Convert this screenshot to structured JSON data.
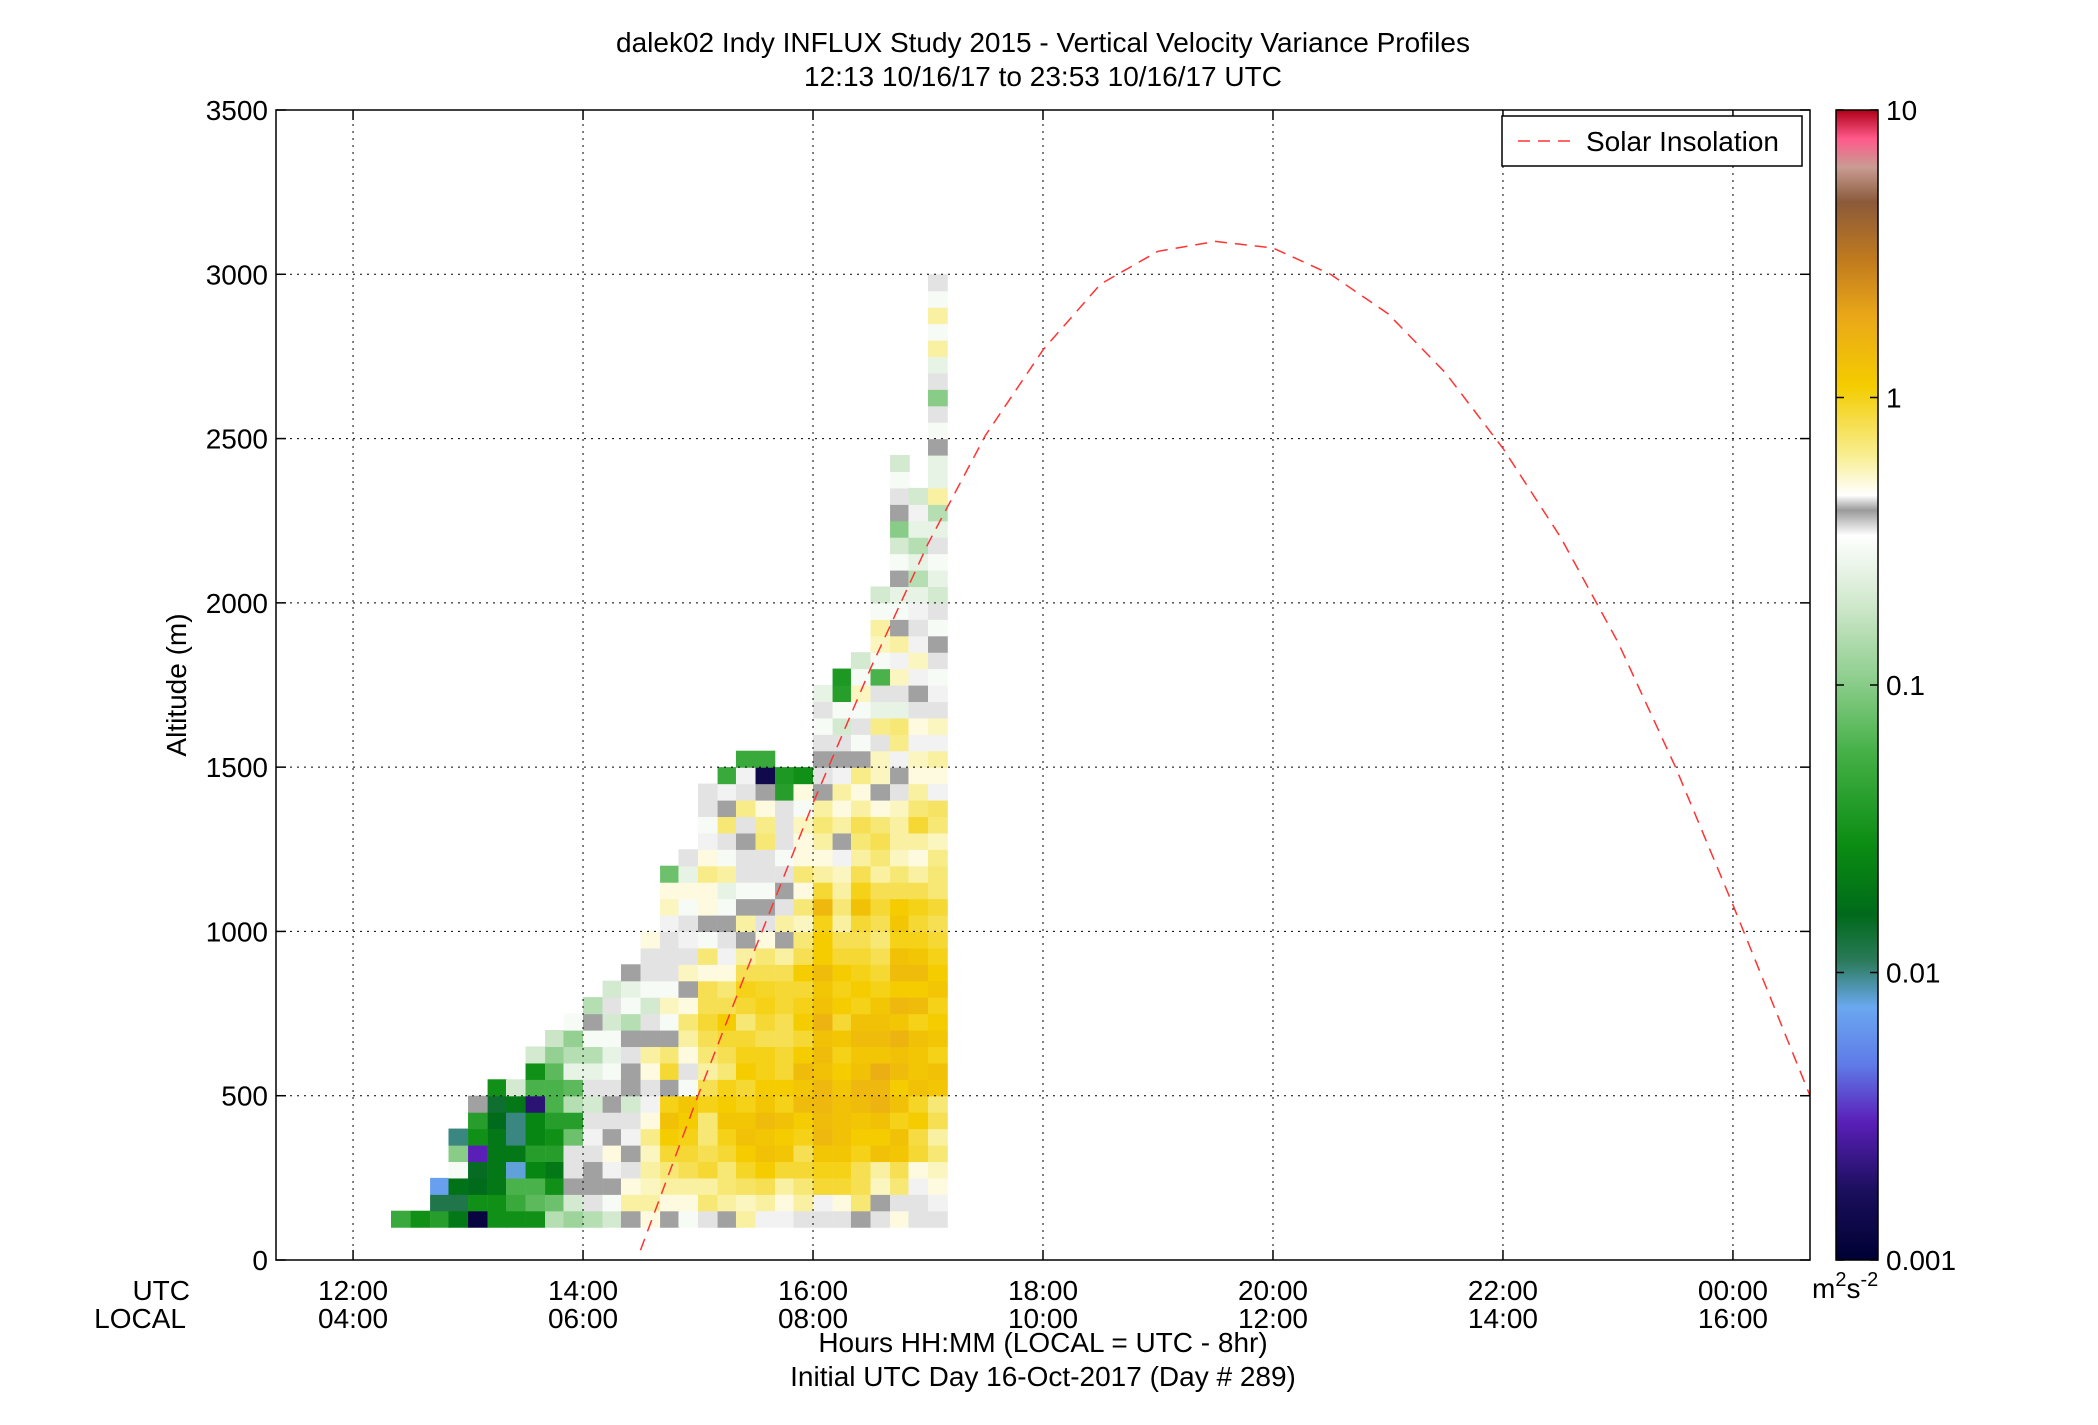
{
  "chart_data": {
    "type": "heatmap",
    "title": "dalek02 Indy INFLUX Study 2015 - Vertical Velocity Variance Profiles",
    "subtitle": "12:13 10/16/17 to 23:53 10/16/17  UTC",
    "ylabel": "Altitude (m)",
    "xlabel": "Hours HH:MM  (LOCAL = UTC - 8hr)",
    "xlabel2": "Initial UTC Day 16-Oct-2017 (Day # 289)",
    "row_label_utc": "UTC",
    "row_label_local": "LOCAL",
    "x_ticks_utc": [
      "12:00",
      "14:00",
      "16:00",
      "18:00",
      "20:00",
      "22:00",
      "00:00"
    ],
    "x_ticks_local": [
      "04:00",
      "06:00",
      "08:00",
      "10:00",
      "12:00",
      "14:00",
      "16:00"
    ],
    "x_tick_hours": [
      12,
      14,
      16,
      18,
      20,
      22,
      24
    ],
    "xlim": [
      11.33,
      24.67
    ],
    "ylim": [
      0,
      3500
    ],
    "y_ticks": [
      0,
      500,
      1000,
      1500,
      2000,
      2500,
      3000,
      3500
    ],
    "grid": true,
    "legend_position": "top-right",
    "legend": [
      {
        "name": "Solar Insolation",
        "style": "red dashed",
        "color": "#ff3333"
      }
    ],
    "colorbar": {
      "scale": "log",
      "min": 0.001,
      "max": 10,
      "ticks": [
        "10",
        "1",
        "0.1",
        "0.01",
        "0.001"
      ],
      "tick_values": [
        10,
        1,
        0.1,
        0.01,
        0.001
      ],
      "unit_base": "m",
      "unit_sup1": "2",
      "unit_mid": "s",
      "unit_sup2": "-2",
      "stops": [
        [
          0.0,
          "#000033"
        ],
        [
          0.06,
          "#1a0f5c"
        ],
        [
          0.12,
          "#5a1fb8"
        ],
        [
          0.17,
          "#5f7be8"
        ],
        [
          0.22,
          "#6aa8f0"
        ],
        [
          0.26,
          "#2a7a5a"
        ],
        [
          0.3,
          "#006a1a"
        ],
        [
          0.36,
          "#0a8c12"
        ],
        [
          0.44,
          "#44b046"
        ],
        [
          0.5,
          "#88cc88"
        ],
        [
          0.57,
          "#d0e8cc"
        ],
        [
          0.63,
          "#ffffff"
        ],
        [
          0.652,
          "#9a9a9a"
        ],
        [
          0.665,
          "#ffffff"
        ],
        [
          0.7,
          "#f8ee90"
        ],
        [
          0.76,
          "#f4cc00"
        ],
        [
          0.82,
          "#eaa818"
        ],
        [
          0.87,
          "#c07a1e"
        ],
        [
          0.92,
          "#8b5a3a"
        ],
        [
          0.95,
          "#c89c92"
        ],
        [
          0.975,
          "#ff5a8a"
        ],
        [
          1.0,
          "#b00018"
        ]
      ]
    },
    "cell_width_hours": 0.1667,
    "cell_height_m": 50,
    "solar_insolation_curve": {
      "x_hours": [
        14.5,
        15.0,
        15.5,
        16.0,
        16.5,
        17.0,
        17.5,
        18.0,
        18.5,
        19.0,
        19.5,
        20.0,
        20.5,
        21.0,
        21.5,
        22.0,
        22.5,
        23.0,
        23.5,
        24.0,
        24.67
      ],
      "y_m": [
        30,
        500,
        950,
        1390,
        1800,
        2180,
        2510,
        2770,
        2970,
        3070,
        3100,
        3080,
        3000,
        2880,
        2700,
        2470,
        2200,
        1880,
        1500,
        1080,
        500
      ]
    },
    "columns": [
      {
        "t": 12.33,
        "v": [
          0.05
        ]
      },
      {
        "t": 12.5,
        "v": [
          0.03
        ]
      },
      {
        "t": 12.67,
        "v": [
          0.04,
          0.012,
          0.007
        ]
      },
      {
        "t": 12.83,
        "v": [
          0.02,
          0.012,
          0.018,
          0.3,
          0.1,
          0.01
        ]
      },
      {
        "t": 13.0,
        "v": [
          0.0012,
          0.03,
          0.016,
          0.015,
          0.003,
          0.03,
          0.04,
          0.4
        ]
      },
      {
        "t": 13.17,
        "v": [
          0.03,
          0.03,
          0.02,
          0.02,
          0.02,
          0.02,
          0.016,
          0.014,
          0.03
        ]
      },
      {
        "t": 13.33,
        "v": [
          0.03,
          0.05,
          0.06,
          0.008,
          0.02,
          0.01,
          0.01,
          0.02,
          0.2
        ]
      },
      {
        "t": 13.5,
        "v": [
          0.03,
          0.07,
          0.06,
          0.025,
          0.04,
          0.025,
          0.025,
          0.002,
          0.06,
          0.03,
          0.2
        ]
      },
      {
        "t": 13.67,
        "v": [
          0.15,
          0.08,
          0.03,
          0.02,
          0.04,
          0.03,
          0.04,
          0.06,
          0.06,
          0.07,
          0.11,
          0.18
        ]
      },
      {
        "t": 13.83,
        "v": [
          0.12,
          0.2,
          0.4,
          0.35,
          0.35,
          0.08,
          0.04,
          0.15,
          0.07,
          0.25,
          0.15,
          0.11,
          0.3
        ]
      },
      {
        "t": 14.0,
        "v": [
          0.15,
          0.35,
          0.4,
          0.4,
          0.35,
          0.45,
          0.35,
          0.2,
          0.35,
          0.25,
          0.15,
          0.3,
          0.4,
          0.15
        ]
      },
      {
        "t": 14.17,
        "v": [
          0.2,
          0.3,
          0.4,
          0.45,
          0.5,
          0.4,
          0.35,
          0.4,
          0.35,
          0.3,
          0.25,
          0.3,
          0.2,
          0.35,
          0.2
        ]
      },
      {
        "t": 14.33,
        "v": [
          0.4,
          0.6,
          0.5,
          0.35,
          0.4,
          0.45,
          0.35,
          0.2,
          0.4,
          0.4,
          0.35,
          0.4,
          0.15,
          0.3,
          0.25,
          0.4
        ]
      },
      {
        "t": 14.5,
        "v": [
          0.5,
          0.6,
          0.55,
          0.6,
          0.55,
          0.65,
          0.5,
          0.45,
          0.35,
          0.5,
          0.6,
          0.4,
          0.35,
          0.2,
          0.3,
          0.35,
          0.35,
          0.5
        ]
      },
      {
        "t": 14.67,
        "v": [
          0.4,
          0.5,
          0.6,
          0.7,
          0.9,
          1.1,
          1.3,
          1.0,
          0.4,
          0.9,
          0.7,
          0.4,
          0.3,
          0.55,
          0.3,
          0.35,
          0.35,
          0.35,
          0.45,
          0.55,
          0.5,
          0.08
        ]
      },
      {
        "t": 14.83,
        "v": [
          0.3,
          0.5,
          0.6,
          0.8,
          0.9,
          1.0,
          1.1,
          1.2,
          0.3,
          0.35,
          0.5,
          0.6,
          0.7,
          0.5,
          0.4,
          0.55,
          0.35,
          0.45,
          0.35,
          0.3,
          0.5,
          0.25,
          0.35
        ]
      },
      {
        "t": 15.0,
        "v": [
          0.35,
          0.7,
          0.6,
          0.9,
          0.8,
          0.7,
          0.7,
          1.0,
          0.8,
          0.6,
          0.7,
          0.8,
          0.9,
          0.8,
          0.8,
          0.5,
          0.7,
          0.3,
          0.4,
          0.5,
          0.5,
          0.65,
          0.5,
          0.45,
          0.3,
          0.35,
          0.35
        ]
      },
      {
        "t": 15.17,
        "v": [
          0.4,
          0.6,
          0.7,
          0.7,
          0.9,
          1.0,
          1.2,
          1.1,
          1.0,
          0.7,
          0.8,
          0.9,
          1.1,
          0.8,
          0.7,
          0.5,
          0.45,
          0.35,
          0.4,
          0.3,
          0.25,
          0.6,
          0.3,
          0.35,
          0.7,
          0.4,
          0.45,
          0.05
        ]
      },
      {
        "t": 15.33,
        "v": [
          0.6,
          0.55,
          0.75,
          0.95,
          1.1,
          1.3,
          1.2,
          1.0,
          0.9,
          1.1,
          1.0,
          0.9,
          0.7,
          0.9,
          1.0,
          0.8,
          0.6,
          0.4,
          0.6,
          0.4,
          0.3,
          0.35,
          0.35,
          0.4,
          0.35,
          0.65,
          0.35,
          0.45,
          0.05
        ]
      },
      {
        "t": 15.5,
        "v": [
          0.45,
          0.6,
          0.8,
          1.1,
          1.3,
          1.2,
          1.4,
          1.2,
          1.1,
          1.0,
          1.0,
          0.8,
          0.9,
          1.0,
          0.95,
          0.8,
          0.7,
          0.5,
          0.35,
          0.4,
          0.3,
          0.35,
          0.35,
          0.7,
          0.65,
          0.5,
          0.4,
          0.0014,
          0.05
        ]
      },
      {
        "t": 15.67,
        "v": [
          0.45,
          0.5,
          0.6,
          0.9,
          1.2,
          1.1,
          1.3,
          1.0,
          1.1,
          0.9,
          0.9,
          0.8,
          0.8,
          0.9,
          0.9,
          0.8,
          0.6,
          0.4,
          0.6,
          0.35,
          0.4,
          0.35,
          0.3,
          0.35,
          0.35,
          0.35,
          0.04,
          0.035
        ]
      },
      {
        "t": 15.83,
        "v": [
          0.35,
          0.6,
          0.7,
          0.9,
          0.8,
          1.0,
          1.1,
          1.4,
          1.2,
          1.4,
          1.1,
          0.9,
          1.1,
          1.0,
          0.9,
          1.1,
          0.8,
          0.7,
          0.55,
          0.7,
          0.5,
          0.7,
          0.5,
          0.5,
          0.55,
          0.3,
          0.5,
          0.03
        ]
      },
      {
        "t": 16.0,
        "v": [
          0.35,
          0.45,
          0.9,
          1.0,
          1.2,
          1.5,
          1.4,
          1.5,
          1.5,
          1.3,
          1.4,
          1.3,
          1.6,
          1.3,
          1.2,
          1.4,
          1.1,
          1.1,
          1.0,
          1.5,
          0.9,
          0.6,
          0.5,
          0.6,
          0.7,
          0.6,
          0.4,
          0.35,
          0.4,
          0.35,
          0.3,
          0.35,
          0.25
        ]
      },
      {
        "t": 16.17,
        "v": [
          0.35,
          0.5,
          0.9,
          1.0,
          1.2,
          1.3,
          1.3,
          1.3,
          1.2,
          1.1,
          1.0,
          1.2,
          0.9,
          1.1,
          1.0,
          1.1,
          0.9,
          0.8,
          0.6,
          0.7,
          0.6,
          0.55,
          0.45,
          0.4,
          0.6,
          0.5,
          0.6,
          0.45,
          0.4,
          0.35,
          0.2,
          0.3,
          0.04,
          0.035
        ]
      },
      {
        "t": 16.33,
        "v": [
          0.4,
          0.7,
          0.8,
          0.8,
          1.0,
          1.1,
          1.2,
          1.4,
          1.5,
          1.3,
          1.2,
          1.4,
          1.3,
          1.0,
          1.1,
          1.0,
          0.9,
          0.8,
          0.9,
          1.3,
          1.0,
          0.8,
          0.6,
          0.7,
          0.8,
          0.6,
          0.5,
          0.65,
          0.4,
          0.3,
          0.35,
          0.3,
          0.55,
          0.3,
          0.2
        ]
      },
      {
        "t": 16.5,
        "v": [
          0.35,
          0.4,
          0.55,
          0.6,
          1.3,
          1.1,
          1.3,
          1.6,
          1.5,
          1.7,
          1.2,
          1.4,
          1.3,
          1.2,
          1.0,
          0.9,
          0.8,
          0.7,
          0.8,
          0.9,
          0.8,
          0.6,
          0.7,
          0.8,
          0.7,
          0.5,
          0.4,
          0.55,
          0.55,
          0.35,
          0.65,
          0.25,
          0.35,
          0.06,
          0.3,
          0.55,
          0.6,
          0.3,
          0.2
        ]
      },
      {
        "t": 16.67,
        "v": [
          0.5,
          0.35,
          0.7,
          0.8,
          1.2,
          1.3,
          1.0,
          1.3,
          1.1,
          1.4,
          1.3,
          1.6,
          1.2,
          1.5,
          1.1,
          1.4,
          1.3,
          1.0,
          1.2,
          1.1,
          0.8,
          0.7,
          0.55,
          0.6,
          0.6,
          0.55,
          0.35,
          0.4,
          0.45,
          0.65,
          0.7,
          0.25,
          0.35,
          0.55,
          0.45,
          0.6,
          0.4,
          0.3,
          0.25,
          0.4,
          0.3,
          0.2,
          0.1,
          0.4,
          0.35,
          0.3,
          0.2
        ]
      },
      {
        "t": 16.83,
        "v": [
          0.35,
          0.35,
          0.45,
          0.5,
          0.9,
          0.85,
          1.1,
          0.95,
          1.3,
          1.2,
          1.2,
          1.3,
          1.0,
          1.4,
          1.1,
          1.4,
          1.2,
          1.0,
          0.9,
          1.0,
          0.8,
          0.6,
          0.5,
          0.6,
          0.9,
          0.7,
          0.6,
          0.5,
          0.55,
          0.45,
          0.5,
          0.35,
          0.4,
          0.45,
          0.55,
          0.45,
          0.35,
          0.45,
          0.25,
          0.15,
          0.25,
          0.15,
          0.25,
          0.45,
          0.2
        ]
      },
      {
        "t": 17.0,
        "v": [
          0.35,
          0.45,
          0.5,
          0.55,
          0.7,
          0.6,
          0.8,
          0.7,
          1.2,
          1.3,
          1.0,
          1.2,
          1.1,
          1.0,
          1.2,
          1.1,
          1.0,
          0.9,
          0.8,
          0.9,
          0.7,
          0.7,
          0.65,
          0.55,
          0.7,
          0.75,
          0.45,
          0.5,
          0.6,
          0.45,
          0.55,
          0.35,
          0.45,
          0.3,
          0.35,
          0.4,
          0.3,
          0.35,
          0.2,
          0.25,
          0.3,
          0.35,
          0.25,
          0.15,
          0.6,
          0.25,
          0.25,
          0.4,
          0.3,
          0.35,
          0.1,
          0.35,
          0.25,
          0.6,
          0.3,
          0.6,
          0.3,
          0.35
        ]
      }
    ]
  }
}
